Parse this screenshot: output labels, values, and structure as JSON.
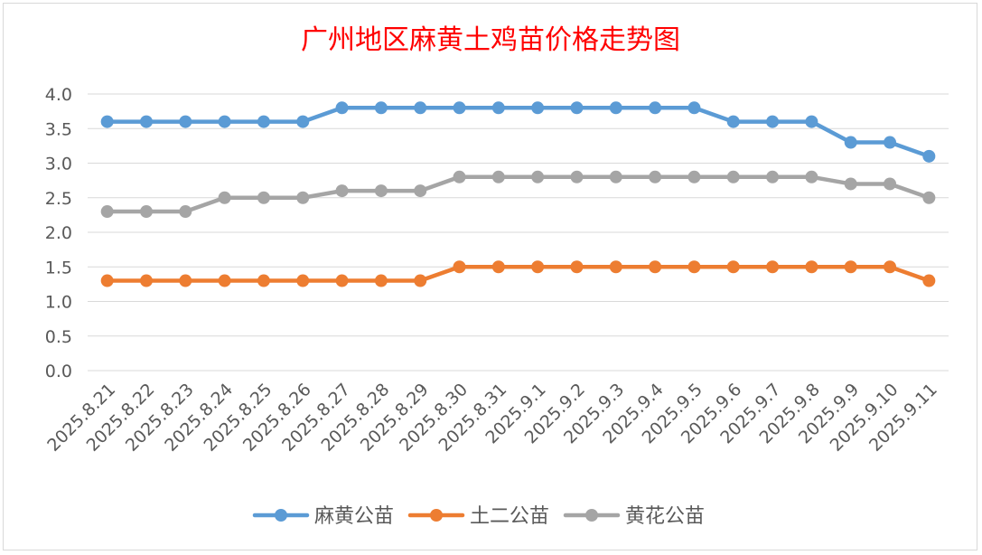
{
  "chart_data": {
    "type": "line",
    "title": "广州地区麻黄土鸡苗价格走势图",
    "title_color": "#ff0000",
    "xlabel": "",
    "ylabel": "",
    "categories": [
      "2025.8.21",
      "2025.8.22",
      "2025.8.23",
      "2025.8.24",
      "2025.8.25",
      "2025.8.26",
      "2025.8.27",
      "2025.8.28",
      "2025.8.29",
      "2025.8.30",
      "2025.8.31",
      "2025.9.1",
      "2025.9.2",
      "2025.9.3",
      "2025.9.4",
      "2025.9.5",
      "2025.9.6",
      "2025.9.7",
      "2025.9.8",
      "2025.9.9",
      "2025.9.10",
      "2025.9.11"
    ],
    "ylim": [
      0,
      4
    ],
    "yticks": [
      "0.0",
      "0.5",
      "1.0",
      "1.5",
      "2.0",
      "2.5",
      "3.0",
      "3.5",
      "4.0"
    ],
    "grid": true,
    "legend_position": "bottom",
    "series": [
      {
        "name": "麻黄公苗",
        "color": "#5b9bd5",
        "values": [
          3.6,
          3.6,
          3.6,
          3.6,
          3.6,
          3.6,
          3.8,
          3.8,
          3.8,
          3.8,
          3.8,
          3.8,
          3.8,
          3.8,
          3.8,
          3.8,
          3.6,
          3.6,
          3.6,
          3.3,
          3.3,
          3.1
        ]
      },
      {
        "name": "土二公苗",
        "color": "#ed7d31",
        "values": [
          1.3,
          1.3,
          1.3,
          1.3,
          1.3,
          1.3,
          1.3,
          1.3,
          1.3,
          1.5,
          1.5,
          1.5,
          1.5,
          1.5,
          1.5,
          1.5,
          1.5,
          1.5,
          1.5,
          1.5,
          1.5,
          1.3
        ]
      },
      {
        "name": "黄花公苗",
        "color": "#a5a5a5",
        "values": [
          2.3,
          2.3,
          2.3,
          2.5,
          2.5,
          2.5,
          2.6,
          2.6,
          2.6,
          2.8,
          2.8,
          2.8,
          2.8,
          2.8,
          2.8,
          2.8,
          2.8,
          2.8,
          2.8,
          2.7,
          2.7,
          2.5
        ]
      }
    ]
  }
}
